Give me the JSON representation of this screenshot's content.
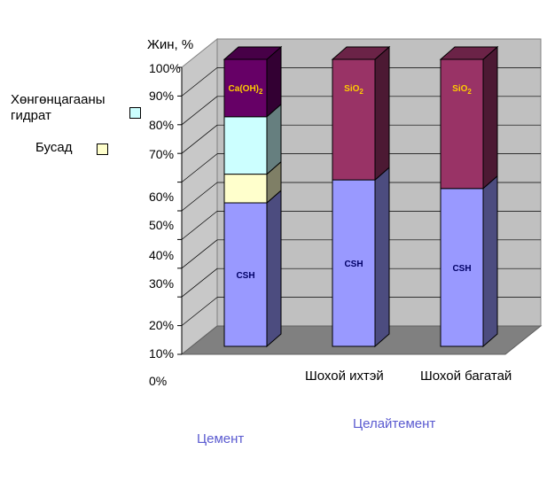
{
  "chart_data": {
    "type": "bar",
    "stacked": true,
    "ylabel": "Жин, %",
    "ytick_labels": [
      "100%",
      "90%",
      "80%",
      "70%",
      "60%",
      "50%",
      "40%",
      "30%",
      "20%",
      "10%",
      "0%"
    ],
    "ylim": [
      0,
      100
    ],
    "categories": [
      "",
      "Шохой ихтэй",
      "Шохой багатай"
    ],
    "group_labels": [
      "Цемент",
      "Целайтемент"
    ],
    "series": [
      {
        "name": "CSH",
        "label": "CSH",
        "values": [
          50,
          58,
          55
        ],
        "color": "#9999ff",
        "label_color": "#000066"
      },
      {
        "name": "Бусад",
        "values": [
          10,
          0,
          0
        ],
        "color": "#ffffcc"
      },
      {
        "name": "Хөнгөнцагааны гидрат",
        "values": [
          20,
          0,
          0
        ],
        "color": "#ccffff"
      },
      {
        "name": "Ca(OH)2",
        "label": "Ca(OH)",
        "label_sub": "2",
        "values": [
          20,
          0,
          0
        ],
        "color": "#660066",
        "label_color": "#ffcc00"
      },
      {
        "name": "SiO2",
        "label": "SiO",
        "label_sub": "2",
        "values": [
          0,
          42,
          45
        ],
        "color": "#993366",
        "label_color": "#ffcc00"
      }
    ],
    "legend": [
      {
        "label_line1": "Хөнгөнцагааны",
        "label_line2": "гидрат",
        "color": "#ccffff"
      },
      {
        "label_line1": "Бусад",
        "color": "#ffffcc"
      }
    ],
    "legend_position": "left"
  }
}
